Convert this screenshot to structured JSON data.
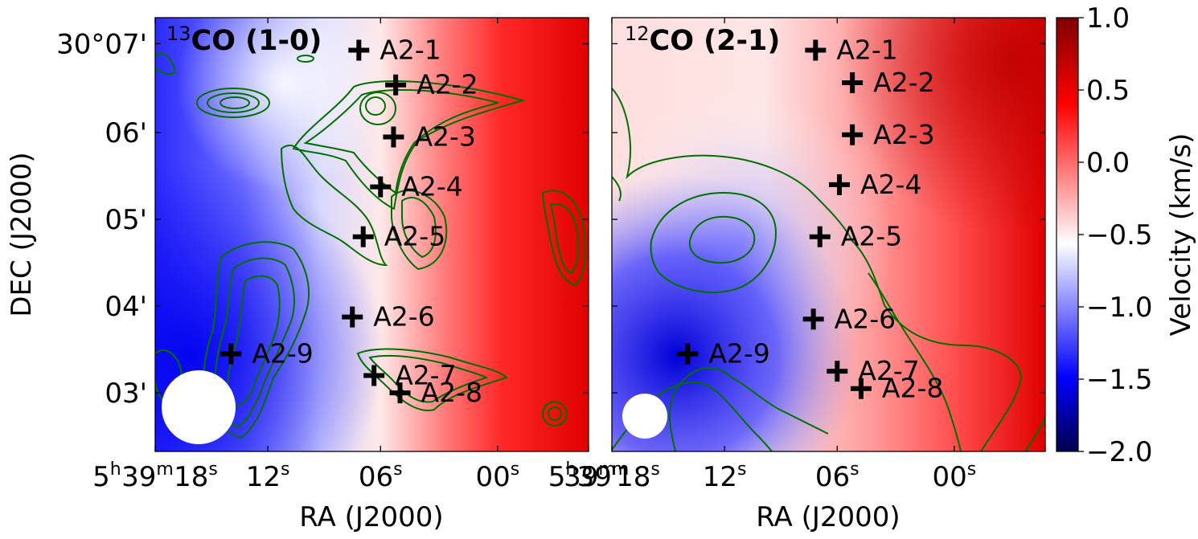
{
  "chart_data": [
    {
      "type": "heatmap",
      "title_sup": "13",
      "title_main": "CO (1-0)",
      "xlabel": "RA (J2000)",
      "ylabel": "DEC (J2000)",
      "x_tick_labels": [
        {
          "h": "5",
          "m": "39",
          "s": "18"
        },
        {
          "s": "12"
        },
        {
          "s": "06"
        },
        {
          "s": "00"
        },
        {
          "h": "5",
          "m": "39",
          "s": ""
        }
      ],
      "y_tick_labels": [
        "30°07'",
        "06'",
        "05'",
        "04'",
        "03'"
      ],
      "beam": "circle",
      "sources": [
        {
          "name": "A2-1",
          "u": 0.47,
          "v": 0.075
        },
        {
          "name": "A2-2",
          "u": 0.555,
          "v": 0.155
        },
        {
          "name": "A2-3",
          "u": 0.55,
          "v": 0.275
        },
        {
          "name": "A2-4",
          "u": 0.52,
          "v": 0.39
        },
        {
          "name": "A2-5",
          "u": 0.48,
          "v": 0.505
        },
        {
          "name": "A2-6",
          "u": 0.455,
          "v": 0.69
        },
        {
          "name": "A2-9",
          "u": 0.175,
          "v": 0.775
        },
        {
          "name": "A2-7",
          "u": 0.505,
          "v": 0.825
        },
        {
          "name": "A2-8",
          "u": 0.565,
          "v": 0.865
        }
      ]
    },
    {
      "type": "heatmap",
      "title_sup": "12",
      "title_main": "CO (2-1)",
      "xlabel": "RA (J2000)",
      "x_tick_labels": [
        {
          "h": "",
          "m": "39",
          "s": "18"
        },
        {
          "s": "12"
        },
        {
          "s": "06"
        },
        {
          "s": "00"
        }
      ],
      "beam": "circle",
      "sources": [
        {
          "name": "A2-1",
          "u": 0.47,
          "v": 0.075
        },
        {
          "name": "A2-2",
          "u": 0.555,
          "v": 0.15
        },
        {
          "name": "A2-3",
          "u": 0.555,
          "v": 0.27
        },
        {
          "name": "A2-4",
          "u": 0.525,
          "v": 0.385
        },
        {
          "name": "A2-5",
          "u": 0.48,
          "v": 0.505
        },
        {
          "name": "A2-6",
          "u": 0.465,
          "v": 0.695
        },
        {
          "name": "A2-9",
          "u": 0.175,
          "v": 0.775
        },
        {
          "name": "A2-7",
          "u": 0.52,
          "v": 0.815
        },
        {
          "name": "A2-8",
          "u": 0.575,
          "v": 0.855
        }
      ]
    }
  ],
  "colorbar": {
    "label": "Velocity (km/s)",
    "min": -2.0,
    "max": 1.0,
    "ticks": [
      "1.0",
      "0.5",
      "0.0",
      "−0.5",
      "−1.0",
      "−1.5",
      "−2.0"
    ],
    "colormap": "seismic",
    "contour_color": "#007000"
  }
}
